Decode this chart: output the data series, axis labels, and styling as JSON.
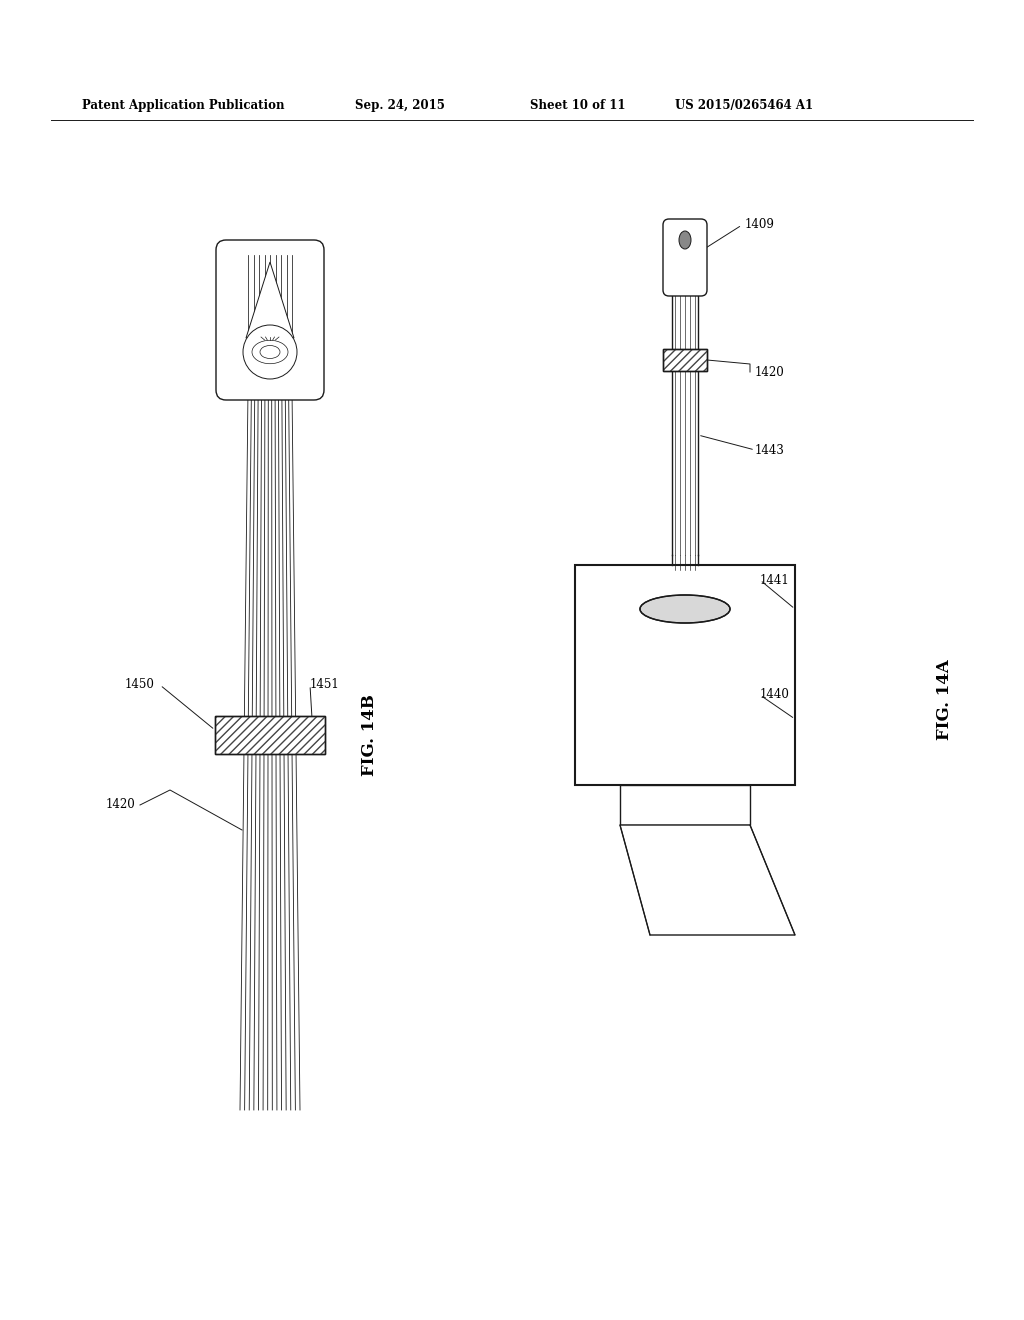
{
  "bg_color": "#ffffff",
  "line_color": "#1a1a1a",
  "header_text": "Patent Application Publication",
  "header_date": "Sep. 24, 2015",
  "header_sheet": "Sheet 10 of 11",
  "header_patent": "US 2015/0265464 A1",
  "fig14b_label": "FIG. 14B",
  "fig14a_label": "FIG. 14A"
}
